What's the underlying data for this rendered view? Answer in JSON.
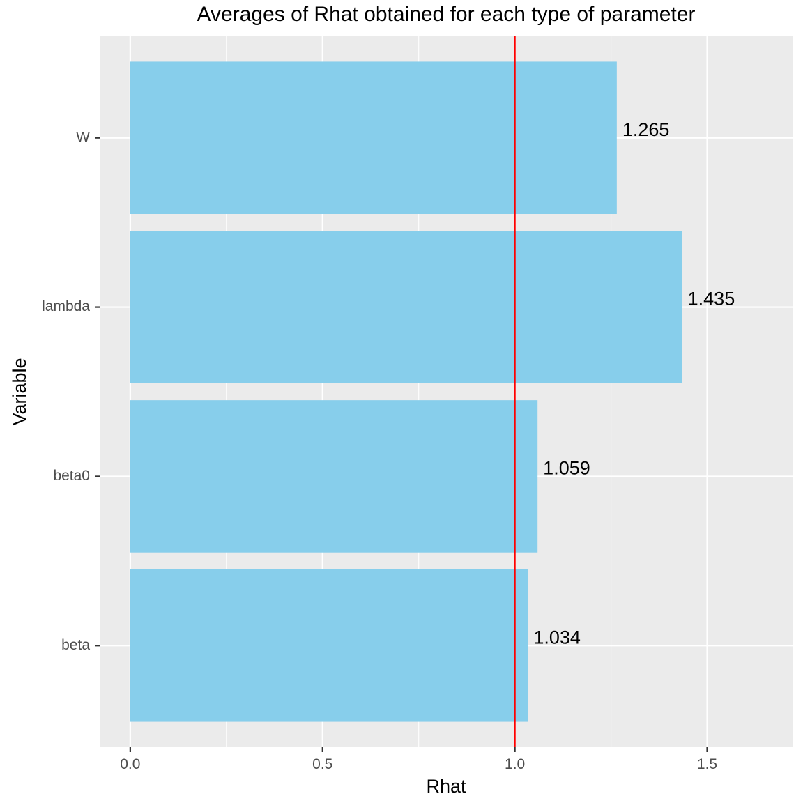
{
  "chart_data": {
    "type": "bar",
    "orientation": "horizontal",
    "title": "Averages of Rhat obtained for each type of parameter",
    "xlabel": "Rhat",
    "ylabel": "Variable",
    "categories": [
      "beta",
      "beta0",
      "lambda",
      "W"
    ],
    "values": [
      1.034,
      1.059,
      1.435,
      1.265
    ],
    "data_labels": [
      "1.034",
      "1.059",
      "1.435",
      "1.265"
    ],
    "xlim": [
      -0.0795,
      1.722
    ],
    "x_ticks": [
      0.0,
      0.5,
      1.0,
      1.5
    ],
    "x_tick_labels": [
      "0.0",
      "0.5",
      "1.0",
      "1.5"
    ],
    "reference_line": {
      "axis": "x",
      "value": 1.0,
      "color": "#ff0000"
    },
    "bar_color": "#87ceeb",
    "panel_background": "#ebebeb",
    "grid": true,
    "legend": "none"
  }
}
